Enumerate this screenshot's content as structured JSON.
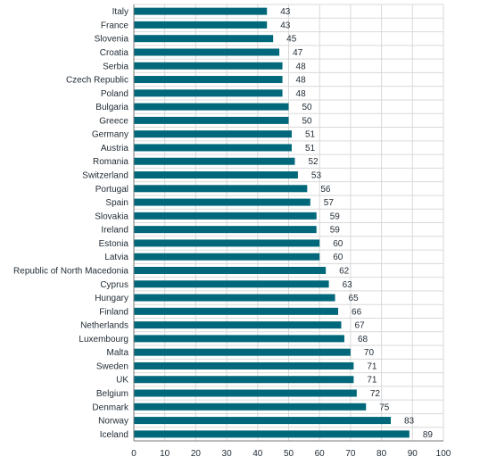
{
  "chart_data": {
    "type": "bar",
    "orientation": "horizontal",
    "title": "",
    "xlabel": "",
    "ylabel": "",
    "xlim": [
      0,
      100
    ],
    "xticks": [
      0,
      10,
      20,
      30,
      40,
      50,
      60,
      70,
      80,
      90,
      100
    ],
    "grid": true,
    "bar_color": "#00687a",
    "categories": [
      "Italy",
      "France",
      "Slovenia",
      "Croatia",
      "Serbia",
      "Czech Republic",
      "Poland",
      "Bulgaria",
      "Greece",
      "Germany",
      "Austria",
      "Romania",
      "Switzerland",
      "Portugal",
      "Spain",
      "Slovakia",
      "Ireland",
      "Estonia",
      "Latvia",
      "Republic of North Macedonia",
      "Cyprus",
      "Hungary",
      "Finland",
      "Netherlands",
      "Luxembourg",
      "Malta",
      "Sweden",
      "UK",
      "Belgium",
      "Denmark",
      "Norway",
      "Iceland"
    ],
    "values": [
      43,
      43,
      45,
      47,
      48,
      48,
      48,
      50,
      50,
      51,
      51,
      52,
      53,
      56,
      57,
      59,
      59,
      60,
      60,
      62,
      63,
      65,
      66,
      67,
      68,
      70,
      71,
      71,
      72,
      75,
      83,
      89
    ]
  }
}
